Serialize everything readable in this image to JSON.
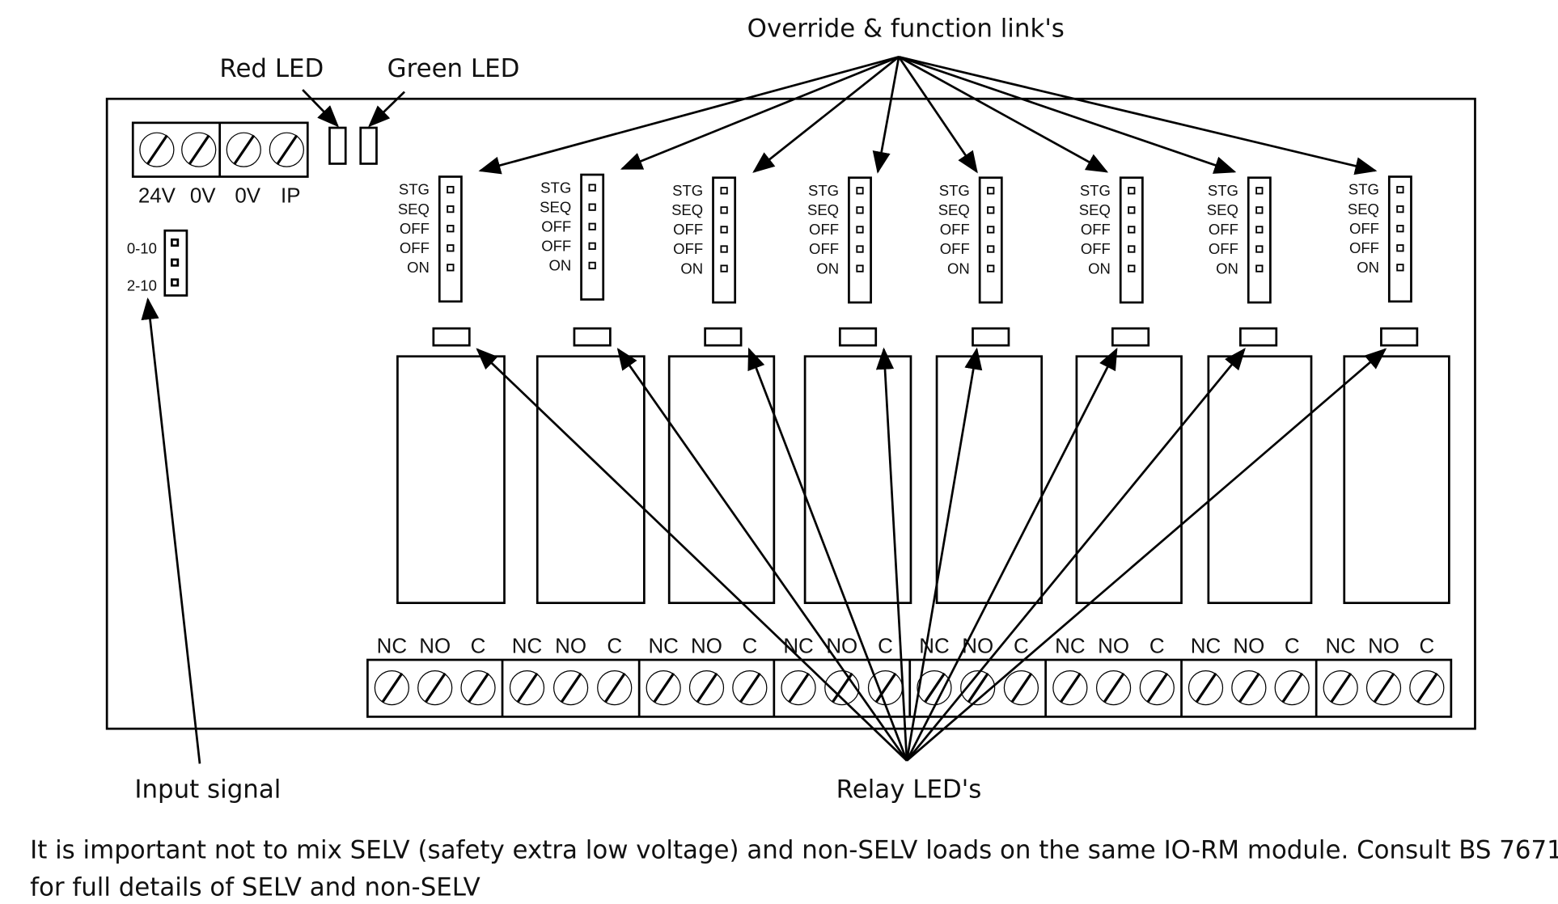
{
  "callouts": {
    "override_links": "Override & function link's",
    "red_led": "Red LED",
    "green_led": "Green LED",
    "input_signal": "Input signal",
    "relay_leds": "Relay LED's"
  },
  "power_terminals": [
    "24V",
    "0V",
    "0V",
    "IP"
  ],
  "input_jumper": {
    "top": "0-10",
    "bottom": "2-10"
  },
  "link_labels": [
    "STG",
    "SEQ",
    "OFF",
    "OFF",
    "ON"
  ],
  "relay_terminals": [
    "NC",
    "NO",
    "C"
  ],
  "relay_count": 8,
  "footer": {
    "line1": "It is important not to mix SELV (safety extra low voltage) and non-SELV loads on the same IO-RM module. Consult BS 7671",
    "line2": "for full details of SELV and non-SELV"
  }
}
